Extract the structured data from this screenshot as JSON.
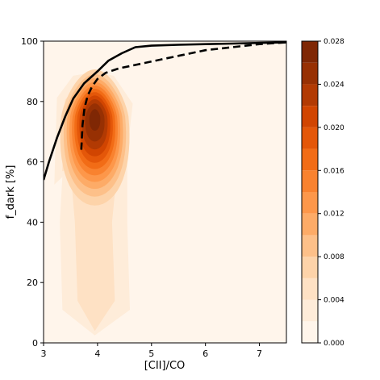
{
  "chart_data": {
    "type": "contour",
    "xlabel": "[CII]/CO",
    "ylabel": "f_dark [%]",
    "xlim": [
      3,
      7.5
    ],
    "ylim": [
      0,
      100
    ],
    "x_ticks": [
      "3",
      "4",
      "5",
      "6",
      "7"
    ],
    "y_ticks": [
      "0",
      "20",
      "40",
      "60",
      "80",
      "100"
    ],
    "grid": false,
    "colormap": "Oranges",
    "colors": [
      "#fff5eb",
      "#fee6ce",
      "#fdd0a2",
      "#fdae6b",
      "#fd8d3c",
      "#f16913",
      "#d94801",
      "#a63603",
      "#7f2704"
    ],
    "colorbar": {
      "levels": [
        0.0,
        0.002,
        0.004,
        0.006,
        0.008,
        0.01,
        0.012,
        0.014,
        0.016,
        0.018,
        0.02,
        0.022,
        0.024,
        0.026,
        0.028
      ],
      "tick_labels": [
        "0.000",
        "0.004",
        "0.008",
        "0.012",
        "0.016",
        "0.020",
        "0.024",
        "0.028"
      ],
      "tick_values": [
        0.0,
        0.004,
        0.008,
        0.012,
        0.016,
        0.02,
        0.024,
        0.028
      ]
    },
    "density": {
      "peak_x": 3.95,
      "peak_y": 75,
      "peak_value": 0.027
    },
    "series": [
      {
        "style": "solid",
        "color": "#000000",
        "x": [
          3.0,
          3.1,
          3.25,
          3.4,
          3.55,
          3.75,
          4.0,
          4.2,
          4.45,
          4.7,
          5.0,
          5.5,
          6.0,
          6.5,
          7.0,
          7.5
        ],
        "y": [
          54,
          60,
          68,
          75,
          81,
          86,
          90,
          93.5,
          96,
          98,
          98.5,
          98.8,
          99,
          99.2,
          99.4,
          99.6
        ]
      },
      {
        "style": "dashed",
        "color": "#000000",
        "x": [
          3.7,
          3.72,
          3.76,
          3.82,
          3.9,
          4.0,
          4.15,
          4.4,
          4.8,
          5.2,
          5.6,
          6.0,
          6.5,
          7.0,
          7.5
        ],
        "y": [
          64,
          72,
          78,
          82,
          85,
          87.5,
          89.5,
          91,
          92.5,
          94,
          95.5,
          97,
          98,
          99,
          99.6
        ]
      }
    ]
  }
}
